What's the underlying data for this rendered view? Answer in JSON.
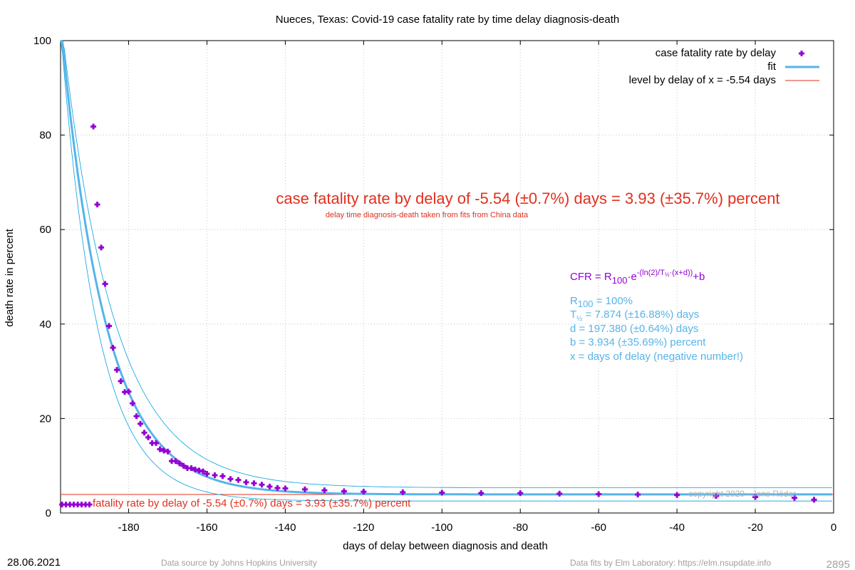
{
  "colors": {
    "points": "#9400d3",
    "fit": "#56b4e9",
    "bands": "#00a0e0",
    "level": "#e0301e",
    "annotation_red": "#e0301e",
    "formula_purple": "#9400d3",
    "params_blue": "#56b4e9",
    "footer_gray": "#a0a0a0",
    "axis": "#000000",
    "grid": "#c8c8c8"
  },
  "chart_data": {
    "type": "scatter",
    "title": "Nueces,  Texas: Covid-19 case fatality rate by time delay diagnosis-death",
    "xlabel": "days of delay between diagnosis and death",
    "ylabel": "death rate in percent",
    "xlim": [
      -197.38,
      0
    ],
    "ylim": [
      0,
      100
    ],
    "x_ticks": [
      -180,
      -160,
      -140,
      -120,
      -100,
      -80,
      -60,
      -40,
      -20,
      0
    ],
    "x_tick_labels": [
      "-180",
      "-160",
      "-140",
      "-120",
      "-100",
      "-80",
      "-60",
      "-40",
      "-20",
      "0"
    ],
    "y_ticks": [
      0,
      20,
      40,
      60,
      80,
      100
    ],
    "y_tick_labels": [
      "0",
      "20",
      "40",
      "60",
      "80",
      "100"
    ],
    "grid": true,
    "legend_position": "top-right",
    "legend": [
      {
        "label": "case fatality rate by delay",
        "kind": "points"
      },
      {
        "label": "fit",
        "kind": "fit"
      },
      {
        "label": "level by delay of x = -5.54 days",
        "kind": "level"
      }
    ],
    "series": [
      {
        "name": "case fatality rate by delay",
        "style": "points",
        "x": [
          -197,
          -196,
          -195,
          -194,
          -193,
          -192,
          -191,
          -190,
          -189,
          -188,
          -187,
          -186,
          -185,
          -184,
          -183,
          -182,
          -181,
          -180,
          -179,
          -178,
          -177,
          -176,
          -175,
          -174,
          -173,
          -172,
          -171,
          -170,
          -169,
          -168,
          -167,
          -166,
          -165,
          -164,
          -163,
          -162,
          -161,
          -160,
          -158,
          -156,
          -154,
          -152,
          -150,
          -148,
          -146,
          -144,
          -142,
          -140,
          -135,
          -130,
          -125,
          -120,
          -110,
          -100,
          -90,
          -80,
          -70,
          -60,
          -50,
          -40,
          -30,
          -20,
          -10,
          -5
        ],
        "y": [
          1.8,
          1.8,
          1.8,
          1.8,
          1.8,
          1.8,
          1.8,
          1.8,
          81.8,
          65.3,
          56.2,
          48.5,
          39.6,
          35.0,
          30.3,
          27.9,
          25.6,
          25.7,
          23.2,
          20.5,
          18.9,
          17.0,
          16.0,
          14.8,
          14.8,
          13.5,
          13.2,
          13.0,
          11.0,
          11.0,
          10.5,
          10.0,
          9.5,
          9.5,
          9.2,
          9.0,
          8.8,
          8.3,
          8.0,
          7.8,
          7.2,
          7.0,
          6.5,
          6.3,
          6.0,
          5.6,
          5.3,
          5.2,
          5.0,
          4.8,
          4.6,
          4.5,
          4.4,
          4.3,
          4.2,
          4.2,
          4.1,
          4.0,
          3.9,
          3.8,
          3.6,
          3.4,
          3.2,
          2.8
        ]
      },
      {
        "name": "fit",
        "style": "line",
        "function": "R100*exp(-(ln(2)/T_half)*(x+d))+b",
        "params": {
          "R100": 100,
          "T_half": 7.874,
          "d": 197.38,
          "b": 3.934
        }
      },
      {
        "style": "band",
        "params": {
          "R100": 100,
          "T_half": 9.203,
          "d": 197.38,
          "b": 5.338
        }
      },
      {
        "style": "band",
        "params": {
          "R100": 100,
          "T_half": 6.545,
          "d": 197.38,
          "b": 2.53
        }
      },
      {
        "name": "level by delay of x = -5.54 days",
        "style": "hline",
        "y": 3.93
      }
    ],
    "annotations": {
      "headline": "case fatality rate by delay of -5.54 (±0.7%) days = 3.93 (±35.7%) percent",
      "subline": "delay time diagnosis-death taken from fits from China data",
      "level_label": "fatality rate by delay of -5.54 (±0.7%) days = 3.93 (±35.7%) percent",
      "formula": {
        "lhs": "CFR = R",
        "sub100": "100",
        "dot_e": "·e",
        "exp_a": "-(ln(2)/T",
        "exp_half": "½",
        "exp_b": "·(x+d))",
        "rhs": "+b"
      },
      "params": {
        "r_main": "R",
        "r_sub": "100",
        "r_rest": " = 100%",
        "t_main": "T",
        "t_sub": "½",
        "t_rest": " = 7.874 (±16.88%) days",
        "d_line": "d = 197.380 (±0.64%) days",
        "b_line": "b = 3.934 (±35.69%) percent",
        "x_line": "x = days of delay (negative number!)"
      },
      "copyright": "copyright 2020 - Jens Röder"
    }
  },
  "footer": {
    "date": "28.06.2021",
    "source": "Data source by Johns Hopkins University",
    "fits": "Data fits by Elm Laboratory: https://elm.nsupdate.info",
    "number": "2895"
  }
}
